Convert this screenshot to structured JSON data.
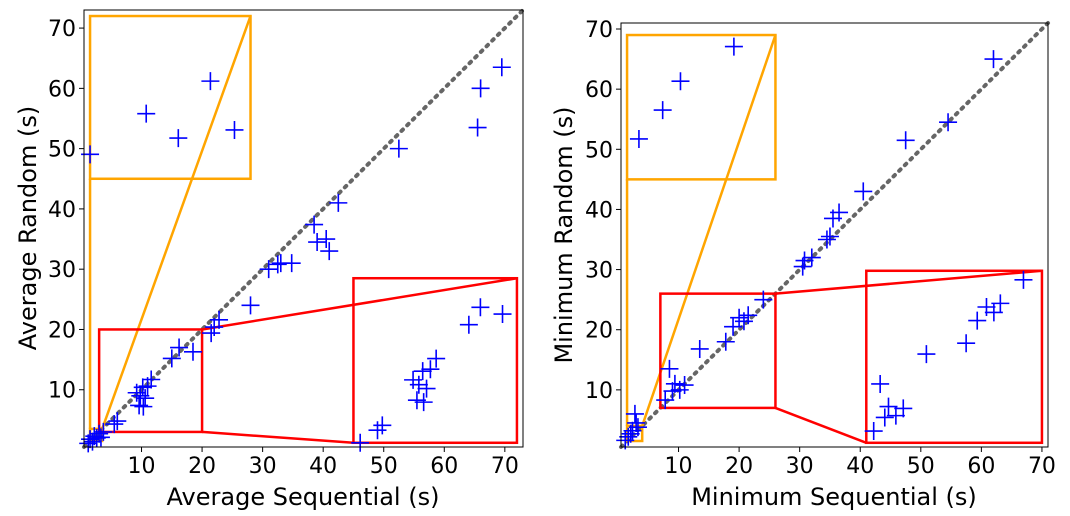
{
  "chart_data": [
    {
      "type": "scatter",
      "xlabel": "Average Sequential (s)",
      "ylabel": "Average Random (s)",
      "xlim": [
        0.5,
        73
      ],
      "ylim": [
        0.5,
        73
      ],
      "xticks": [
        10,
        20,
        30,
        40,
        50,
        60,
        70
      ],
      "yticks": [
        10,
        20,
        30,
        40,
        50,
        60,
        70
      ],
      "diagonal": "y = x",
      "marker": "+",
      "color": "#0000ff",
      "points": [
        [
          1.2,
          1.1
        ],
        [
          1.5,
          1.8
        ],
        [
          1.9,
          1.4
        ],
        [
          2.2,
          2.3
        ],
        [
          2.6,
          2.0
        ],
        [
          3.0,
          2.7
        ],
        [
          3.3,
          2.1
        ],
        [
          3.7,
          3.0
        ],
        [
          5.5,
          4.3
        ],
        [
          6.0,
          4.8
        ],
        [
          9.2,
          9.5
        ],
        [
          9.8,
          9.0
        ],
        [
          10.2,
          10.4
        ],
        [
          10.6,
          8.6
        ],
        [
          9.6,
          7.4
        ],
        [
          10.3,
          7.2
        ],
        [
          11.0,
          10.6
        ],
        [
          11.6,
          11.7
        ],
        [
          15.0,
          15.2
        ],
        [
          16.2,
          17.0
        ],
        [
          18.5,
          16.3
        ],
        [
          21.5,
          19.4
        ],
        [
          22.0,
          20.4
        ],
        [
          22.8,
          21.6
        ],
        [
          28.0,
          24.0
        ],
        [
          31.0,
          30.0
        ],
        [
          32.5,
          30.8
        ],
        [
          33.0,
          31.0
        ],
        [
          34.8,
          31.0
        ],
        [
          38.5,
          37.4
        ],
        [
          39.0,
          34.5
        ],
        [
          40.5,
          35.0
        ],
        [
          41.0,
          33.0
        ],
        [
          42.5,
          41.0
        ],
        [
          52.5,
          50.0
        ],
        [
          65.5,
          53.5
        ],
        [
          66.0,
          60.0
        ],
        [
          69.5,
          63.5
        ]
      ],
      "insets": [
        {
          "color": "#ffa500",
          "source": {
            "x": [
              1.5,
              3.5
            ],
            "y": [
              1.5,
              3.5
            ]
          },
          "target": {
            "x": [
              1.5,
              28
            ],
            "y": [
              45,
              72
            ]
          }
        },
        {
          "color": "#ff0000",
          "source": {
            "x": [
              3,
              20
            ],
            "y": [
              3,
              20
            ]
          },
          "target": {
            "x": [
              45,
              72
            ],
            "y": [
              1.2,
              28.5
            ]
          }
        }
      ]
    },
    {
      "type": "scatter",
      "xlabel": "Minimum Sequential (s)",
      "ylabel": "Minimum Random (s)",
      "xlim": [
        0.5,
        71
      ],
      "ylim": [
        0.5,
        71
      ],
      "xticks": [
        10,
        20,
        30,
        40,
        50,
        60,
        70
      ],
      "yticks": [
        10,
        20,
        30,
        40,
        50,
        60,
        70
      ],
      "diagonal": "y = x",
      "marker": "+",
      "color": "#0000ff",
      "points": [
        [
          1.2,
          1.6
        ],
        [
          1.7,
          2.2
        ],
        [
          2.1,
          2.7
        ],
        [
          2.4,
          3.2
        ],
        [
          2.8,
          6.0
        ],
        [
          3.0,
          4.5
        ],
        [
          3.3,
          3.8
        ],
        [
          7.8,
          8.3
        ],
        [
          8.5,
          13.5
        ],
        [
          9.0,
          9.8
        ],
        [
          9.4,
          11.0
        ],
        [
          10.2,
          10.0
        ],
        [
          11.0,
          10.8
        ],
        [
          13.5,
          16.8
        ],
        [
          17.8,
          18.0
        ],
        [
          19.0,
          20.5
        ],
        [
          20.0,
          22.0
        ],
        [
          20.8,
          21.4
        ],
        [
          21.5,
          22.4
        ],
        [
          24.0,
          25.0
        ],
        [
          30.5,
          30.5
        ],
        [
          30.8,
          31.5
        ],
        [
          32.0,
          32.0
        ],
        [
          34.5,
          35.0
        ],
        [
          35.0,
          35.5
        ],
        [
          35.5,
          38.5
        ],
        [
          36.5,
          39.5
        ],
        [
          40.5,
          43.0
        ],
        [
          47.5,
          51.5
        ],
        [
          54.5,
          54.5
        ],
        [
          62.0,
          65.0
        ]
      ],
      "insets": [
        {
          "color": "#ffa500",
          "source": {
            "x": [
              1.5,
              4
            ],
            "y": [
              1.5,
              4
            ]
          },
          "target": {
            "x": [
              1.5,
              26
            ],
            "y": [
              45,
              69
            ]
          }
        },
        {
          "color": "#ff0000",
          "source": {
            "x": [
              7,
              26
            ],
            "y": [
              7,
              26
            ]
          },
          "target": {
            "x": [
              41,
              70
            ],
            "y": [
              1.2,
              29.8
            ]
          }
        }
      ]
    }
  ]
}
